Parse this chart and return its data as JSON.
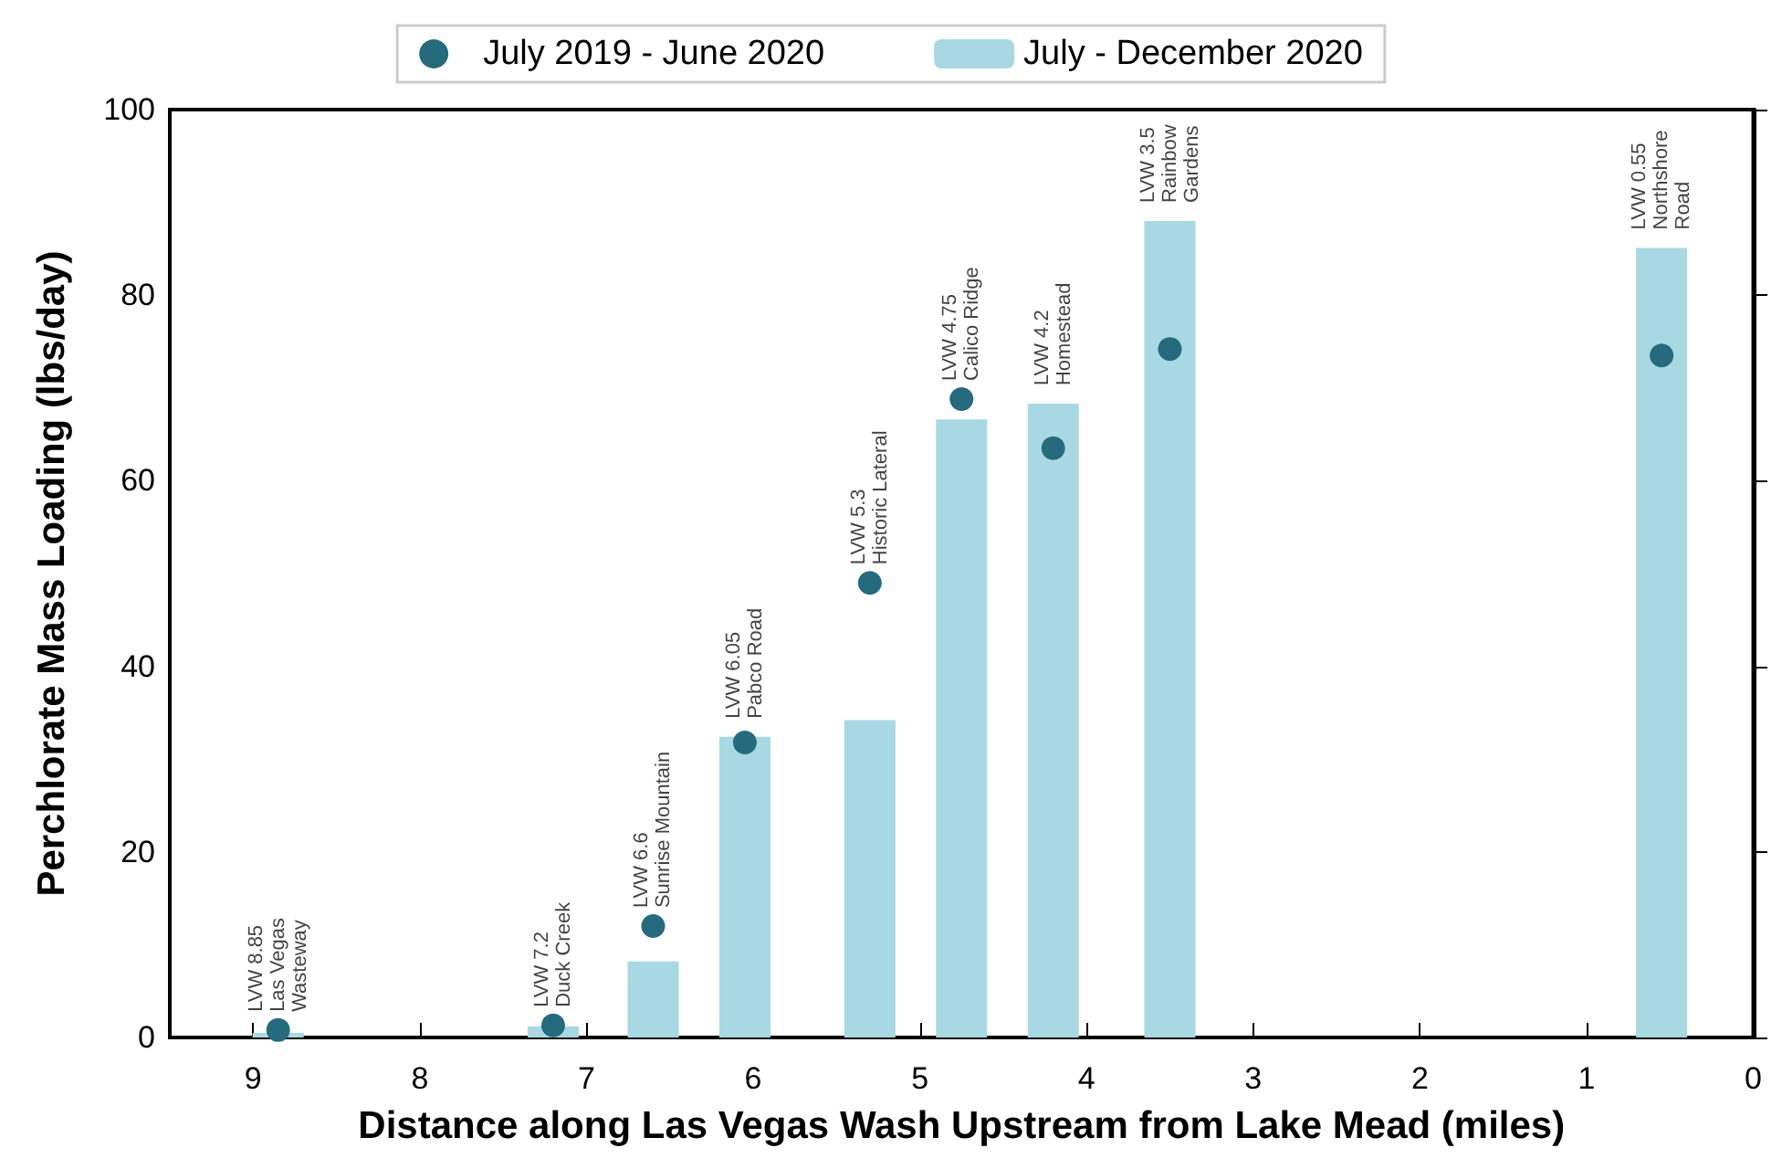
{
  "chart_data": {
    "type": "bar",
    "xlabel": "Distance along Las Vegas Wash Upstream from Lake Mead (miles)",
    "ylabel": "Perchlorate Mass Loading (lbs/day)",
    "series": [
      {
        "name": "July 2019 - June 2020",
        "type": "scatter",
        "color": "#256b7d",
        "x": [
          8.85,
          7.2,
          6.6,
          6.05,
          5.3,
          4.75,
          4.2,
          3.5,
          0.55
        ],
        "values": [
          0.8,
          1.3,
          12.0,
          31.8,
          49.0,
          68.8,
          63.5,
          74.2,
          73.5
        ]
      },
      {
        "name": "July - December 2020",
        "color": "#a8d8e3",
        "x": [
          8.85,
          7.2,
          6.6,
          6.05,
          5.3,
          4.75,
          4.2,
          3.5,
          0.55
        ],
        "values": [
          0.5,
          1.2,
          8.2,
          32.4,
          34.2,
          66.6,
          68.3,
          88.0,
          85.1
        ]
      }
    ],
    "annotations": [
      {
        "text": "LVW 8.85\nLas Vegas\nWasteway",
        "x": 8.85,
        "y": 0.8
      },
      {
        "text": "LVW 7.2\nDuck Creek",
        "x": 7.2,
        "y": 1.3
      },
      {
        "text": "LVW 6.6\nSunrise Mountain",
        "x": 6.6,
        "y": 12.0
      },
      {
        "text": "LVW 6.05\nPabco Road",
        "x": 6.05,
        "y": 32.4
      },
      {
        "text": "LVW 5.3\nHistoric Lateral",
        "x": 5.3,
        "y": 49.0
      },
      {
        "text": "LVW 4.75\nCalico Ridge",
        "x": 4.75,
        "y": 68.8
      },
      {
        "text": "LVW 4.2\nHomestead",
        "x": 4.2,
        "y": 68.3
      },
      {
        "text": "LVW 3.5\nRainbow\nGardens",
        "x": 3.5,
        "y": 88.0
      },
      {
        "text": "LVW 0.55\nNorthshore\nRoad",
        "x": 0.55,
        "y": 85.1
      }
    ],
    "xlim": [
      9.5,
      0
    ],
    "xticks": [
      0,
      1,
      2,
      3,
      4,
      5,
      6,
      7,
      8,
      9
    ],
    "ylim": [
      0,
      100
    ],
    "yticks": [
      0,
      20,
      40,
      60,
      80,
      100
    ],
    "grid": false,
    "legend": "top",
    "marker": "circle"
  }
}
